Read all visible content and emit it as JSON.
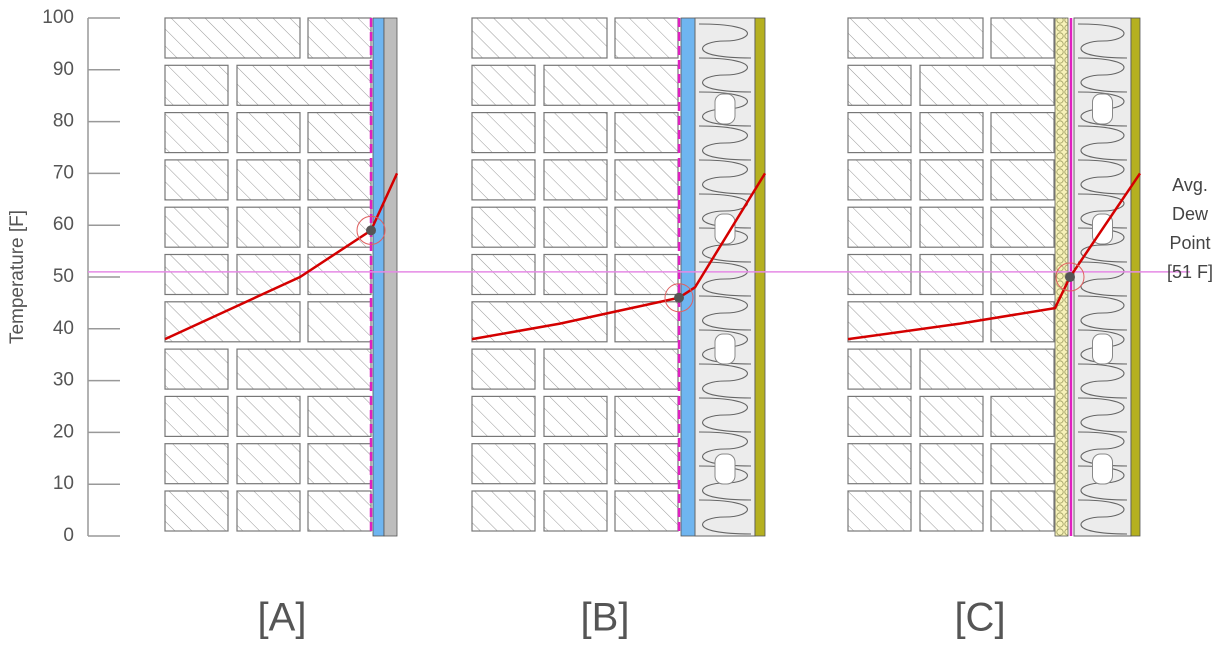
{
  "axis": {
    "label": "Temperature [F]",
    "ylim": [
      0,
      100
    ],
    "yticks": [
      0,
      10,
      20,
      30,
      40,
      50,
      60,
      70,
      80,
      90,
      100
    ]
  },
  "dew_point": {
    "value": 51,
    "label": [
      "Avg.",
      "Dew",
      "Point",
      "[51 F]"
    ]
  },
  "panels": [
    {
      "label": "[A]",
      "profile": [
        38,
        50,
        59,
        70
      ],
      "condensation_point": 59
    },
    {
      "label": "[B]",
      "profile": [
        38,
        41,
        46,
        48,
        70
      ],
      "condensation_point": 46
    },
    {
      "label": "[C]",
      "profile": [
        38,
        41,
        44,
        50,
        70
      ],
      "condensation_point": 50
    }
  ]
}
